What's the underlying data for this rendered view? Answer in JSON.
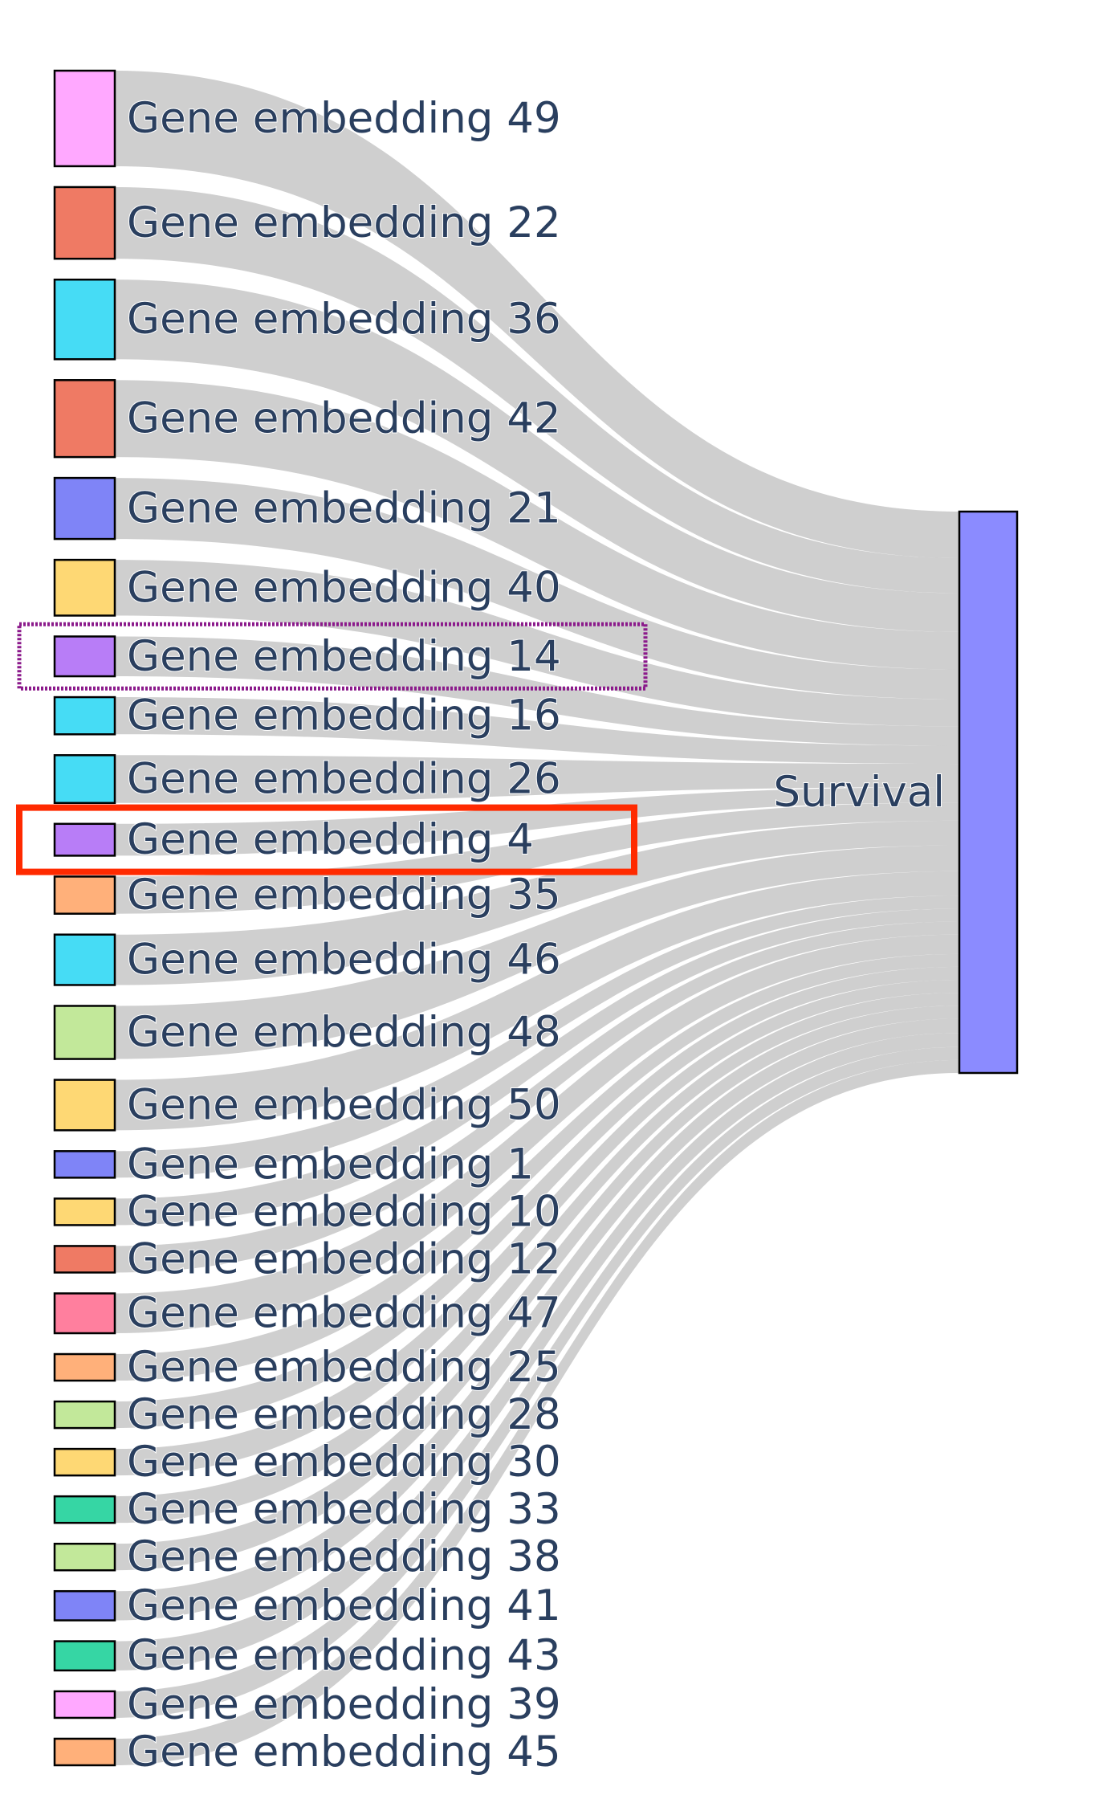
{
  "chart_data": {
    "type": "sankey",
    "target": {
      "label": "Survival",
      "color": "#8b8bff"
    },
    "link_color": "#cccccc",
    "sources": [
      {
        "label": "Gene embedding 49",
        "value": 3.6,
        "color": "#ffa8ff"
      },
      {
        "label": "Gene embedding 22",
        "value": 2.7,
        "color": "#ef7a64"
      },
      {
        "label": "Gene embedding 36",
        "value": 3.0,
        "color": "#46dcf5"
      },
      {
        "label": "Gene embedding 42",
        "value": 2.9,
        "color": "#ef7a64"
      },
      {
        "label": "Gene embedding 21",
        "value": 2.3,
        "color": "#7f84f7"
      },
      {
        "label": "Gene embedding 40",
        "value": 2.1,
        "color": "#fed874"
      },
      {
        "label": "Gene embedding 14",
        "value": 1.5,
        "color": "#b87df7"
      },
      {
        "label": "Gene embedding 16",
        "value": 1.4,
        "color": "#46dcf5"
      },
      {
        "label": "Gene embedding 26",
        "value": 1.8,
        "color": "#46dcf5"
      },
      {
        "label": "Gene embedding 4",
        "value": 1.2,
        "color": "#b87df7"
      },
      {
        "label": "Gene embedding 35",
        "value": 1.4,
        "color": "#ffb07a"
      },
      {
        "label": "Gene embedding 46",
        "value": 1.9,
        "color": "#46dcf5"
      },
      {
        "label": "Gene embedding 48",
        "value": 2.0,
        "color": "#c2e89a"
      },
      {
        "label": "Gene embedding 50",
        "value": 1.9,
        "color": "#fed874"
      },
      {
        "label": "Gene embedding 1",
        "value": 1.0,
        "color": "#7f84f7"
      },
      {
        "label": "Gene embedding 10",
        "value": 1.0,
        "color": "#fed874"
      },
      {
        "label": "Gene embedding 12",
        "value": 1.0,
        "color": "#ef7a64"
      },
      {
        "label": "Gene embedding 47",
        "value": 1.5,
        "color": "#ff7f9e"
      },
      {
        "label": "Gene embedding 25",
        "value": 1.0,
        "color": "#ffb07a"
      },
      {
        "label": "Gene embedding 28",
        "value": 1.0,
        "color": "#c2e89a"
      },
      {
        "label": "Gene embedding 30",
        "value": 1.0,
        "color": "#fed874"
      },
      {
        "label": "Gene embedding 33",
        "value": 1.0,
        "color": "#36d6a4"
      },
      {
        "label": "Gene embedding 38",
        "value": 1.0,
        "color": "#c2e89a"
      },
      {
        "label": "Gene embedding 41",
        "value": 1.1,
        "color": "#7f84f7"
      },
      {
        "label": "Gene embedding 43",
        "value": 1.1,
        "color": "#36d6a4"
      },
      {
        "label": "Gene embedding 39",
        "value": 1.0,
        "color": "#ffa8ff"
      },
      {
        "label": "Gene embedding 45",
        "value": 1.0,
        "color": "#ffb07a"
      }
    ],
    "highlights": [
      {
        "label": "Gene embedding 14",
        "color": "#8b1a8b",
        "style": "dotted"
      },
      {
        "label": "Gene embedding 4",
        "color": "#ff2a00",
        "style": "solid"
      }
    ]
  }
}
